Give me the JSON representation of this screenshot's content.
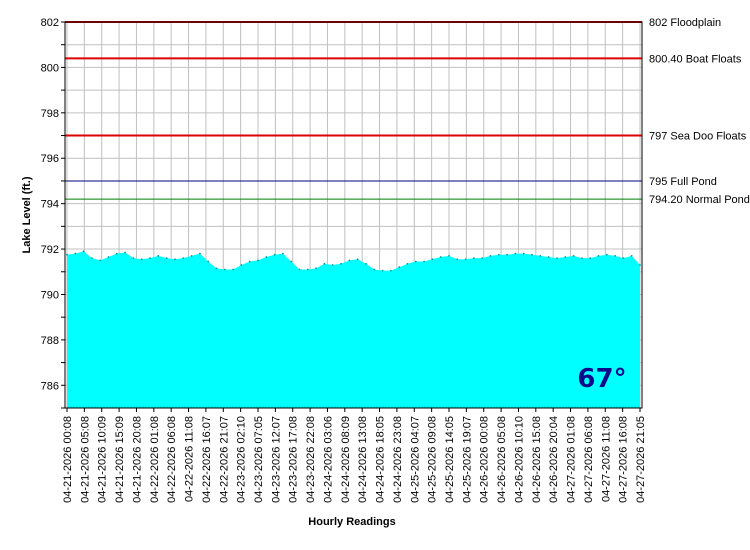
{
  "chart_data": {
    "type": "area",
    "title": "",
    "xlabel": "Hourly Readings",
    "ylabel": "Lake Level (ft.)",
    "ylim": [
      785,
      802
    ],
    "yticks": [
      786,
      788,
      790,
      792,
      794,
      796,
      798,
      800,
      802
    ],
    "x_tick_labels": [
      "04-21-2026 00:08",
      "04-21-2026 05:08",
      "04-21-2026 10:09",
      "04-21-2026 15:09",
      "04-21-2026 20:08",
      "04-22-2026 01:08",
      "04-22-2026 06:08",
      "04-22-2026 11:08",
      "04-22-2026 16:07",
      "04-22-2026 21:07",
      "04-23-2026 02:10",
      "04-23-2026 07:05",
      "04-23-2026 12:07",
      "04-23-2026 17:08",
      "04-23-2026 22:08",
      "04-24-2026 03:06",
      "04-24-2026 08:09",
      "04-24-2026 13:08",
      "04-24-2026 18:05",
      "04-24-2026 23:08",
      "04-25-2026 04:07",
      "04-25-2026 09:08",
      "04-25-2026 14:05",
      "04-25-2026 19:07",
      "04-26-2026 00:08",
      "04-26-2026 05:08",
      "04-26-2026 10:10",
      "04-26-2026 15:08",
      "04-26-2026 20:04",
      "04-27-2026 01:08",
      "04-27-2026 06:08",
      "04-27-2026 11:08",
      "04-27-2026 16:08",
      "04-27-2026 21:05"
    ],
    "series": [
      {
        "color": "#00ffff",
        "values": [
          791.75,
          791.8,
          791.9,
          791.6,
          791.5,
          791.65,
          791.8,
          791.85,
          791.6,
          791.55,
          791.6,
          791.7,
          791.6,
          791.55,
          791.6,
          791.7,
          791.8,
          791.45,
          791.15,
          791.1,
          791.1,
          791.3,
          791.45,
          791.5,
          791.65,
          791.75,
          791.8,
          791.45,
          791.1,
          791.1,
          791.15,
          791.35,
          791.3,
          791.35,
          791.5,
          791.55,
          791.35,
          791.1,
          791.05,
          791.05,
          791.2,
          791.35,
          791.45,
          791.45,
          791.55,
          791.65,
          791.7,
          791.55,
          791.55,
          791.6,
          791.6,
          791.7,
          791.75,
          791.75,
          791.8,
          791.8,
          791.75,
          791.7,
          791.65,
          791.6,
          791.65,
          791.7,
          791.6,
          791.6,
          791.7,
          791.75,
          791.7,
          791.6,
          791.7,
          791.3
        ]
      }
    ],
    "reference_lines": [
      {
        "value": 802,
        "label": "802 Floodplain",
        "color": "#dd0000"
      },
      {
        "value": 800.4,
        "label": "800.40 Boat Floats",
        "color": "#dd0000"
      },
      {
        "value": 797,
        "label": "797 Sea Doo Floats",
        "color": "#dd0000"
      },
      {
        "value": 795,
        "label": "795 Full Pond",
        "color": "#000080"
      },
      {
        "value": 794.2,
        "label": "794.20 Normal Pond",
        "color": "#008000"
      }
    ],
    "grid": true,
    "temperature_badge": {
      "text": "67°",
      "background": "#00ffff",
      "color": "#0a0a8a"
    }
  }
}
